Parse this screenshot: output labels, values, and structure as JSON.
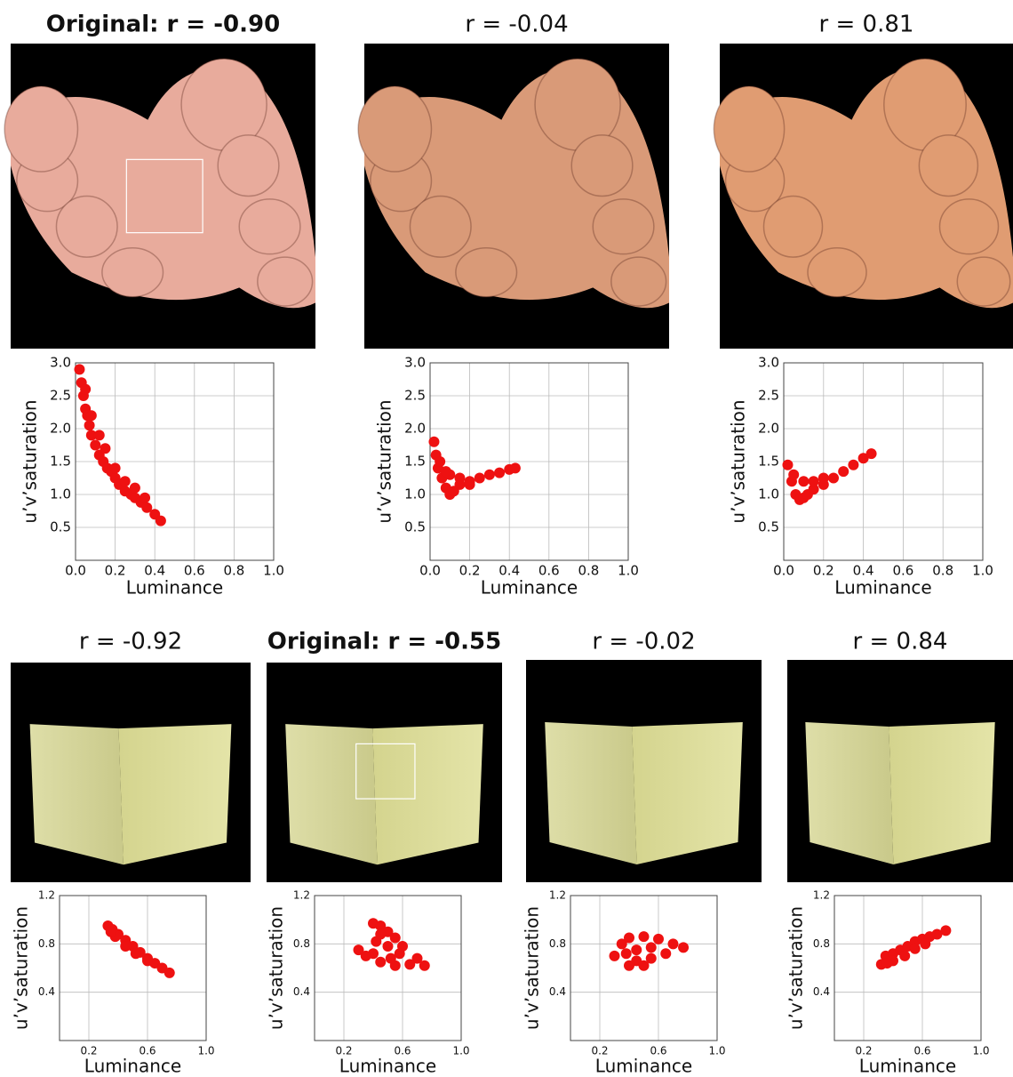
{
  "chart_data": [
    {
      "type": "scatter",
      "title": "Original: r = -0.90",
      "title_bold": true,
      "xlabel": "Luminance",
      "ylabel": "u’v’saturation",
      "color": "#ee1111",
      "grid": true,
      "xlim": [
        0,
        1
      ],
      "ylim": [
        0,
        3
      ],
      "xticks": [
        {
          "value": 0,
          "label": "0.0"
        },
        0.2,
        0.4,
        0.6,
        0.8,
        {
          "value": 1,
          "label": "1.0"
        }
      ],
      "yticks": [
        0.5,
        {
          "value": 1,
          "label": "1.0"
        },
        1.5,
        {
          "value": 2,
          "label": "2.0"
        },
        2.5,
        {
          "value": 3,
          "label": "3.0"
        }
      ],
      "x": [
        0.02,
        0.03,
        0.04,
        0.05,
        0.06,
        0.07,
        0.08,
        0.1,
        0.12,
        0.14,
        0.16,
        0.18,
        0.2,
        0.22,
        0.25,
        0.28,
        0.3,
        0.33,
        0.36,
        0.4,
        0.43,
        0.05,
        0.08,
        0.12,
        0.15,
        0.2,
        0.25,
        0.3,
        0.35
      ],
      "y": [
        2.9,
        2.7,
        2.5,
        2.3,
        2.2,
        2.05,
        1.9,
        1.75,
        1.6,
        1.5,
        1.4,
        1.35,
        1.25,
        1.15,
        1.05,
        1.0,
        0.95,
        0.88,
        0.8,
        0.7,
        0.6,
        2.6,
        2.2,
        1.9,
        1.7,
        1.4,
        1.2,
        1.1,
        0.95
      ]
    },
    {
      "type": "scatter",
      "title": "r = -0.04",
      "xlabel": "Luminance",
      "ylabel": "u’v’saturation",
      "color": "#ee1111",
      "grid": true,
      "xlim": [
        0,
        1
      ],
      "ylim": [
        0,
        3
      ],
      "xticks": [
        {
          "value": 0,
          "label": "0.0"
        },
        0.2,
        0.4,
        0.6,
        0.8,
        {
          "value": 1,
          "label": "1.0"
        }
      ],
      "yticks": [
        0.5,
        {
          "value": 1,
          "label": "1.0"
        },
        1.5,
        {
          "value": 2,
          "label": "2.0"
        },
        2.5,
        {
          "value": 3,
          "label": "3.0"
        }
      ],
      "x": [
        0.02,
        0.03,
        0.04,
        0.06,
        0.08,
        0.1,
        0.12,
        0.15,
        0.2,
        0.25,
        0.3,
        0.35,
        0.4,
        0.43,
        0.05,
        0.1,
        0.15,
        0.2,
        0.08
      ],
      "y": [
        1.8,
        1.6,
        1.4,
        1.25,
        1.1,
        1.0,
        1.05,
        1.15,
        1.2,
        1.25,
        1.3,
        1.33,
        1.38,
        1.4,
        1.5,
        1.3,
        1.25,
        1.15,
        1.35
      ]
    },
    {
      "type": "scatter",
      "title": "r = 0.81",
      "xlabel": "Luminance",
      "ylabel": "u’v’saturation",
      "color": "#ee1111",
      "grid": true,
      "xlim": [
        0,
        1
      ],
      "ylim": [
        0,
        3
      ],
      "xticks": [
        {
          "value": 0,
          "label": "0.0"
        },
        0.2,
        0.4,
        0.6,
        0.8,
        {
          "value": 1,
          "label": "1.0"
        }
      ],
      "yticks": [
        0.5,
        {
          "value": 1,
          "label": "1.0"
        },
        1.5,
        {
          "value": 2,
          "label": "2.0"
        },
        2.5,
        {
          "value": 3,
          "label": "3.0"
        }
      ],
      "x": [
        0.02,
        0.04,
        0.06,
        0.08,
        0.1,
        0.12,
        0.15,
        0.2,
        0.25,
        0.3,
        0.35,
        0.4,
        0.44,
        0.05,
        0.1,
        0.15,
        0.2
      ],
      "y": [
        1.45,
        1.2,
        1.0,
        0.92,
        0.95,
        1.0,
        1.08,
        1.15,
        1.25,
        1.35,
        1.45,
        1.55,
        1.62,
        1.3,
        1.2,
        1.2,
        1.25
      ]
    },
    {
      "type": "scatter",
      "title": "r = -0.92",
      "xlabel": "Luminance",
      "ylabel": "u’v’saturation",
      "color": "#ee1111",
      "grid": true,
      "xlim": [
        0,
        1
      ],
      "ylim": [
        0,
        1.2
      ],
      "xticks": [
        0.2,
        0.6,
        {
          "value": 1,
          "label": "1.0"
        }
      ],
      "yticks": [
        0.4,
        0.8,
        1.2
      ],
      "x": [
        0.33,
        0.36,
        0.4,
        0.45,
        0.5,
        0.55,
        0.6,
        0.65,
        0.7,
        0.75,
        0.38,
        0.45,
        0.52,
        0.6,
        0.35
      ],
      "y": [
        0.95,
        0.92,
        0.88,
        0.83,
        0.78,
        0.73,
        0.68,
        0.64,
        0.6,
        0.56,
        0.86,
        0.78,
        0.72,
        0.66,
        0.9
      ]
    },
    {
      "type": "scatter",
      "title": "Original: r = -0.55",
      "title_bold": true,
      "xlabel": "Luminance",
      "ylabel": "u’v’saturation",
      "color": "#ee1111",
      "grid": true,
      "xlim": [
        0,
        1
      ],
      "ylim": [
        0,
        1.2
      ],
      "xticks": [
        0.2,
        0.6,
        {
          "value": 1,
          "label": "1.0"
        }
      ],
      "yticks": [
        0.4,
        0.8,
        1.2
      ],
      "x": [
        0.4,
        0.45,
        0.5,
        0.55,
        0.6,
        0.7,
        0.75,
        0.65,
        0.55,
        0.45,
        0.4,
        0.3,
        0.42,
        0.5,
        0.58,
        0.45,
        0.52,
        0.35
      ],
      "y": [
        0.97,
        0.95,
        0.9,
        0.85,
        0.78,
        0.68,
        0.62,
        0.63,
        0.62,
        0.65,
        0.72,
        0.75,
        0.82,
        0.78,
        0.72,
        0.88,
        0.68,
        0.7
      ]
    },
    {
      "type": "scatter",
      "title": "r = -0.02",
      "xlabel": "Luminance",
      "ylabel": "u’v’saturation",
      "color": "#ee1111",
      "grid": true,
      "xlim": [
        0,
        1
      ],
      "ylim": [
        0,
        1.2
      ],
      "xticks": [
        0.2,
        0.6,
        {
          "value": 1,
          "label": "1.0"
        }
      ],
      "yticks": [
        0.4,
        0.8,
        1.2
      ],
      "x": [
        0.35,
        0.4,
        0.5,
        0.6,
        0.7,
        0.77,
        0.65,
        0.55,
        0.45,
        0.4,
        0.3,
        0.45,
        0.55,
        0.38,
        0.5
      ],
      "y": [
        0.8,
        0.85,
        0.86,
        0.84,
        0.8,
        0.77,
        0.72,
        0.68,
        0.66,
        0.62,
        0.7,
        0.75,
        0.77,
        0.72,
        0.62
      ]
    },
    {
      "type": "scatter",
      "title": "r = 0.84",
      "xlabel": "Luminance",
      "ylabel": "u’v’saturation",
      "color": "#ee1111",
      "grid": true,
      "xlim": [
        0,
        1
      ],
      "ylim": [
        0,
        1.2
      ],
      "xticks": [
        0.2,
        0.6,
        {
          "value": 1,
          "label": "1.0"
        }
      ],
      "yticks": [
        0.4,
        0.8,
        1.2
      ],
      "x": [
        0.32,
        0.35,
        0.4,
        0.45,
        0.5,
        0.55,
        0.6,
        0.65,
        0.7,
        0.76,
        0.4,
        0.48,
        0.55,
        0.62,
        0.36
      ],
      "y": [
        0.63,
        0.7,
        0.72,
        0.75,
        0.78,
        0.82,
        0.84,
        0.86,
        0.88,
        0.91,
        0.66,
        0.7,
        0.76,
        0.8,
        0.64
      ]
    }
  ]
}
